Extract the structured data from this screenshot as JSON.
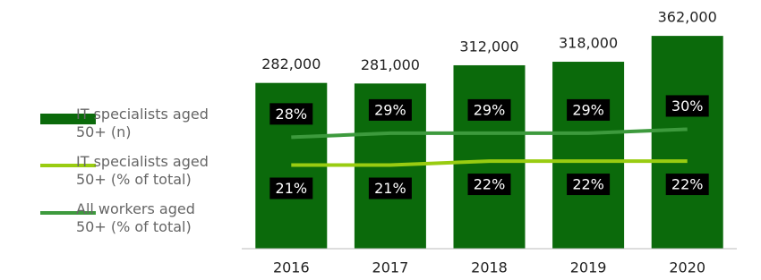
{
  "chart_data": {
    "type": "bar",
    "categories": [
      "2016",
      "2017",
      "2018",
      "2019",
      "2020"
    ],
    "series": [
      {
        "name": "IT specialists aged 50+ (n)",
        "type": "bar",
        "color": "#0b6a0b",
        "values": [
          282000,
          281000,
          312000,
          318000,
          362000
        ],
        "value_labels": [
          "282,000",
          "281,000",
          "312,000",
          "318,000",
          "362,000"
        ]
      },
      {
        "name": "IT specialists aged 50+ (% of total)",
        "type": "line",
        "axis": "y2",
        "color": "#99cc11",
        "values": [
          21,
          21,
          22,
          22,
          22
        ],
        "value_labels": [
          "21%",
          "21%",
          "22%",
          "22%",
          "22%"
        ]
      },
      {
        "name": "All workers aged 50+ (% of total)",
        "type": "line",
        "axis": "y2",
        "color": "#3d9a3d",
        "values": [
          28,
          29,
          29,
          29,
          30
        ],
        "value_labels": [
          "28%",
          "29%",
          "29%",
          "29%",
          "30%"
        ]
      }
    ],
    "ylim": [
      0,
      420000
    ],
    "y2lim": [
      0,
      62
    ]
  }
}
